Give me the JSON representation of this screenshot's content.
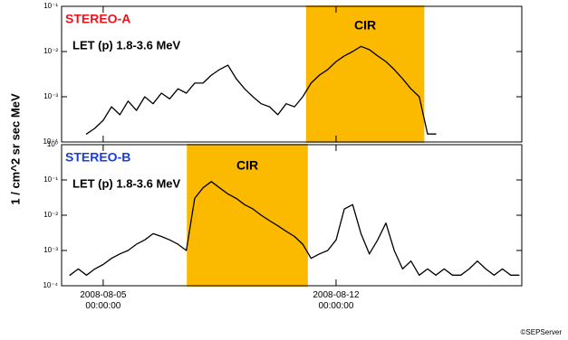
{
  "ylabel": "1 / cm^2 sr sec MeV",
  "credit": "©SEPServer",
  "chart_data": [
    {
      "type": "line",
      "title": "STEREO-A",
      "title_color": "#e8141b",
      "log_y": true,
      "ylim": [
        0.0001,
        0.1
      ],
      "yticks": [
        {
          "value": 0.1,
          "label": "10⁻¹"
        },
        {
          "value": 0.01,
          "label": "10⁻²"
        },
        {
          "value": 0.001,
          "label": "10⁻³"
        },
        {
          "value": 0.0001,
          "label": "10⁻⁴"
        }
      ],
      "shade": {
        "start": "2008-08-11 03:00",
        "end": "2008-08-14 15:00",
        "label": "CIR",
        "color": "#fbb900"
      },
      "x": [
        "2008-08-04 00:00",
        "2008-08-04 06:00",
        "2008-08-04 12:00",
        "2008-08-04 18:00",
        "2008-08-05 00:00",
        "2008-08-05 06:00",
        "2008-08-05 12:00",
        "2008-08-05 18:00",
        "2008-08-06 00:00",
        "2008-08-06 06:00",
        "2008-08-06 12:00",
        "2008-08-06 18:00",
        "2008-08-07 00:00",
        "2008-08-07 06:00",
        "2008-08-07 12:00",
        "2008-08-07 18:00",
        "2008-08-08 00:00",
        "2008-08-08 06:00",
        "2008-08-08 12:00",
        "2008-08-08 18:00",
        "2008-08-09 00:00",
        "2008-08-09 06:00",
        "2008-08-09 12:00",
        "2008-08-09 18:00",
        "2008-08-10 00:00",
        "2008-08-10 06:00",
        "2008-08-10 12:00",
        "2008-08-10 18:00",
        "2008-08-11 00:00",
        "2008-08-11 06:00",
        "2008-08-11 12:00",
        "2008-08-11 18:00",
        "2008-08-12 00:00",
        "2008-08-12 06:00",
        "2008-08-12 12:00",
        "2008-08-12 18:00",
        "2008-08-13 00:00",
        "2008-08-13 06:00",
        "2008-08-13 12:00",
        "2008-08-13 18:00",
        "2008-08-14 00:00",
        "2008-08-14 06:00",
        "2008-08-14 12:00",
        "2008-08-14 18:00",
        "2008-08-15 00:00",
        "2008-08-15 06:00",
        "2008-08-15 12:00",
        "2008-08-15 18:00",
        "2008-08-16 00:00",
        "2008-08-16 06:00",
        "2008-08-16 12:00",
        "2008-08-16 18:00",
        "2008-08-17 00:00",
        "2008-08-17 06:00",
        "2008-08-17 12:00"
      ],
      "series": [
        {
          "name": "LET (p) 1.8-3.6 MeV",
          "color": "#000000",
          "values": [
            0.00015,
            null,
            0.00015,
            0.0002,
            0.0003,
            0.0006,
            0.0004,
            0.0008,
            0.0005,
            0.001,
            0.0007,
            0.0012,
            0.0009,
            0.0015,
            0.0012,
            0.002,
            0.002,
            0.003,
            0.004,
            0.005,
            0.0025,
            0.0015,
            0.001,
            0.0007,
            0.0006,
            0.0004,
            0.0007,
            0.0006,
            0.001,
            0.002,
            0.003,
            0.004,
            0.006,
            0.008,
            0.01,
            0.013,
            0.011,
            0.008,
            0.006,
            0.004,
            0.0025,
            0.0015,
            0.001,
            0.00015,
            0.00015,
            null,
            0.00015,
            null,
            0.00015,
            null,
            0.00015,
            null,
            0.00015,
            null,
            0.00015
          ]
        }
      ]
    },
    {
      "type": "line",
      "title": "STEREO-B",
      "title_color": "#1a3de0",
      "log_y": true,
      "ylim": [
        0.0001,
        1
      ],
      "yticks": [
        {
          "value": 1,
          "label": "10⁰"
        },
        {
          "value": 0.1,
          "label": "10⁻¹"
        },
        {
          "value": 0.01,
          "label": "10⁻²"
        },
        {
          "value": 0.001,
          "label": "10⁻³"
        },
        {
          "value": 0.0001,
          "label": "10⁻⁴"
        }
      ],
      "xlim": [
        "2008-08-03 18:00",
        "2008-08-17 14:00"
      ],
      "xticks": [
        {
          "value": "2008-08-05 00:00:00",
          "label": "2008-08-05\n00:00:00"
        },
        {
          "value": "2008-08-12 00:00:00",
          "label": "2008-08-12\n00:00:00"
        }
      ],
      "shade": {
        "start": "2008-08-07 13:00",
        "end": "2008-08-11 03:00",
        "label": "CIR",
        "color": "#fbb900"
      },
      "x": [
        "2008-08-04 00:00",
        "2008-08-04 06:00",
        "2008-08-04 12:00",
        "2008-08-04 18:00",
        "2008-08-05 00:00",
        "2008-08-05 06:00",
        "2008-08-05 12:00",
        "2008-08-05 18:00",
        "2008-08-06 00:00",
        "2008-08-06 06:00",
        "2008-08-06 12:00",
        "2008-08-06 18:00",
        "2008-08-07 00:00",
        "2008-08-07 06:00",
        "2008-08-07 12:00",
        "2008-08-07 18:00",
        "2008-08-08 00:00",
        "2008-08-08 06:00",
        "2008-08-08 12:00",
        "2008-08-08 18:00",
        "2008-08-09 00:00",
        "2008-08-09 06:00",
        "2008-08-09 12:00",
        "2008-08-09 18:00",
        "2008-08-10 00:00",
        "2008-08-10 06:00",
        "2008-08-10 12:00",
        "2008-08-10 18:00",
        "2008-08-11 00:00",
        "2008-08-11 06:00",
        "2008-08-11 12:00",
        "2008-08-11 18:00",
        "2008-08-12 00:00",
        "2008-08-12 06:00",
        "2008-08-12 12:00",
        "2008-08-12 18:00",
        "2008-08-13 00:00",
        "2008-08-13 06:00",
        "2008-08-13 12:00",
        "2008-08-13 18:00",
        "2008-08-14 00:00",
        "2008-08-14 06:00",
        "2008-08-14 12:00",
        "2008-08-14 18:00",
        "2008-08-15 00:00",
        "2008-08-15 06:00",
        "2008-08-15 12:00",
        "2008-08-15 18:00",
        "2008-08-16 00:00",
        "2008-08-16 06:00",
        "2008-08-16 12:00",
        "2008-08-16 18:00",
        "2008-08-17 00:00",
        "2008-08-17 06:00",
        "2008-08-17 12:00"
      ],
      "series": [
        {
          "name": "LET (p) 1.8-3.6 MeV",
          "color": "#000000",
          "values": [
            0.0002,
            0.0003,
            0.0002,
            0.0003,
            0.0004,
            0.0006,
            0.0008,
            0.001,
            0.0015,
            0.002,
            0.003,
            0.0025,
            0.002,
            0.0015,
            0.001,
            0.03,
            0.06,
            0.09,
            0.06,
            0.04,
            0.03,
            0.02,
            0.015,
            0.01,
            0.007,
            0.005,
            0.0035,
            0.0025,
            0.0015,
            0.0006,
            0.0008,
            0.001,
            0.002,
            0.015,
            0.02,
            0.003,
            0.0008,
            0.002,
            0.006,
            0.001,
            0.0003,
            0.0005,
            0.0002,
            0.0003,
            0.0002,
            0.0003,
            0.0002,
            0.0002,
            0.0003,
            0.0005,
            0.0003,
            0.0002,
            0.0003,
            0.0002,
            0.0002
          ]
        }
      ]
    }
  ]
}
